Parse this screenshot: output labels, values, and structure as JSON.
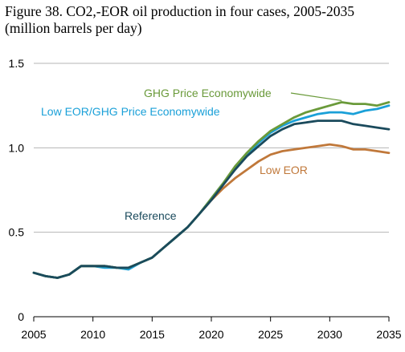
{
  "title_line1": "Figure 38. CO2,-EOR oil production in four cases, 2005-2035",
  "title_line2": "(million barrels per day)",
  "chart_data": {
    "type": "line",
    "title": "Figure 38. CO2,-EOR oil production in four cases, 2005-2035",
    "subtitle": "(million barrels per day)",
    "xlabel": "",
    "ylabel": "",
    "xlim": [
      2005,
      2035
    ],
    "ylim": [
      0,
      1.5
    ],
    "x_ticks": [
      "2005",
      "2010",
      "2015",
      "2020",
      "2025",
      "2030",
      "2035"
    ],
    "y_ticks": [
      "0",
      "0.5",
      "1.0",
      "1.5"
    ],
    "grid": true,
    "legend": "inline labels",
    "x": [
      2005,
      2006,
      2007,
      2008,
      2009,
      2010,
      2011,
      2012,
      2013,
      2014,
      2015,
      2016,
      2017,
      2018,
      2019,
      2020,
      2021,
      2022,
      2023,
      2024,
      2025,
      2026,
      2027,
      2028,
      2029,
      2030,
      2031,
      2032,
      2033,
      2034,
      2035
    ],
    "series": [
      {
        "name": "Reference",
        "color": "#1a4a5c",
        "values": [
          0.26,
          0.24,
          0.23,
          0.25,
          0.3,
          0.3,
          0.3,
          0.29,
          0.29,
          0.32,
          0.35,
          0.41,
          0.47,
          0.53,
          0.61,
          0.69,
          0.78,
          0.87,
          0.95,
          1.01,
          1.07,
          1.11,
          1.14,
          1.15,
          1.16,
          1.16,
          1.16,
          1.14,
          1.13,
          1.12,
          1.11
        ]
      },
      {
        "name": "Low EOR",
        "color": "#c0783a",
        "values": [
          0.26,
          0.24,
          0.23,
          0.25,
          0.3,
          0.3,
          0.3,
          0.29,
          0.29,
          0.32,
          0.35,
          0.41,
          0.47,
          0.53,
          0.61,
          0.69,
          0.76,
          0.82,
          0.87,
          0.92,
          0.96,
          0.98,
          0.99,
          1.0,
          1.01,
          1.02,
          1.01,
          0.99,
          0.99,
          0.98,
          0.97
        ]
      },
      {
        "name": "GHG Price Economywide",
        "color": "#6a9a3a",
        "values": [
          0.26,
          0.24,
          0.23,
          0.25,
          0.3,
          0.3,
          0.3,
          0.29,
          0.29,
          0.32,
          0.35,
          0.41,
          0.47,
          0.53,
          0.61,
          0.7,
          0.79,
          0.89,
          0.97,
          1.04,
          1.1,
          1.14,
          1.18,
          1.21,
          1.23,
          1.25,
          1.27,
          1.26,
          1.26,
          1.25,
          1.27
        ]
      },
      {
        "name": "Low EOR/GHG Price Economywide",
        "color": "#1aa0d8",
        "values": [
          0.26,
          0.24,
          0.23,
          0.25,
          0.3,
          0.3,
          0.29,
          0.29,
          0.28,
          0.32,
          0.35,
          0.41,
          0.47,
          0.53,
          0.61,
          0.7,
          0.79,
          0.88,
          0.96,
          1.03,
          1.09,
          1.13,
          1.16,
          1.18,
          1.2,
          1.21,
          1.21,
          1.2,
          1.22,
          1.23,
          1.25
        ]
      }
    ]
  }
}
